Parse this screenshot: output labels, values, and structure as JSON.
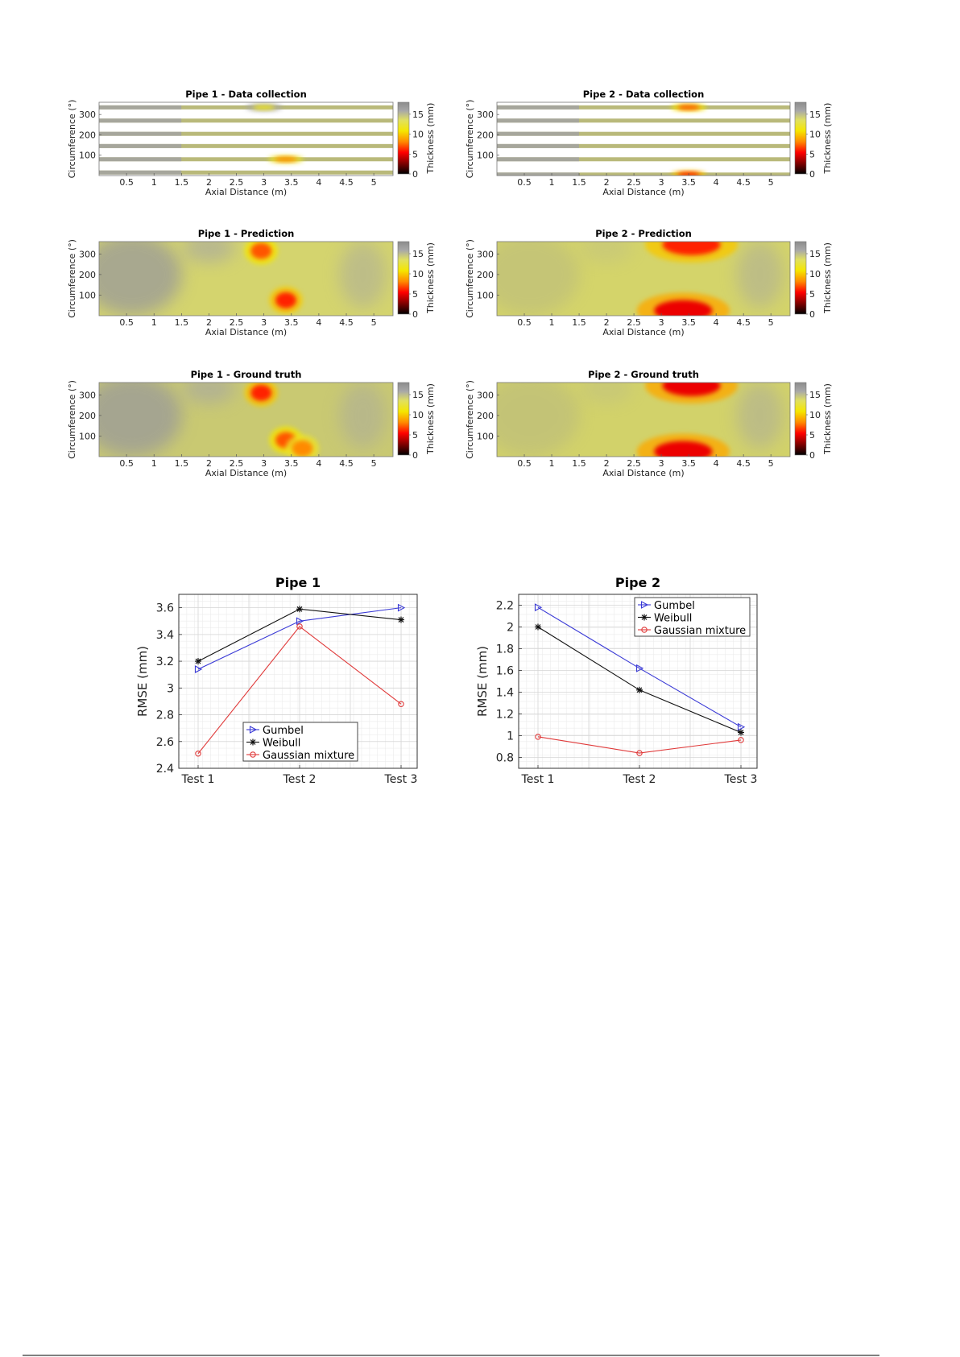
{
  "chart_data": [
    {
      "type": "heatmap",
      "title": "Pipe 1 - Data collection",
      "xlabel": "Axial Distance (m)",
      "ylabel": "Circumference (°)",
      "colorbar_label": "Thickness (mm)",
      "xticks": [
        "0.5",
        "1",
        "1.5",
        "2",
        "2.5",
        "3",
        "3.5",
        "4",
        "4.5",
        "5"
      ],
      "yticks": [
        "100",
        "200",
        "300"
      ],
      "cbticks": [
        "0",
        "5",
        "10",
        "15"
      ],
      "xlim": [
        0,
        5.35
      ],
      "ylim": [
        0,
        360
      ],
      "clim": [
        0,
        18
      ],
      "sampled_bands_deg": [
        15,
        80,
        145,
        205,
        270,
        335
      ],
      "thin_spots": [
        {
          "x": 3.0,
          "y": 335,
          "thickness_mm": 12
        },
        {
          "x": 3.4,
          "y": 80,
          "thickness_mm": 8
        }
      ]
    },
    {
      "type": "heatmap",
      "title": "Pipe 2 - Data collection",
      "xlabel": "Axial Distance (m)",
      "ylabel": "Circumference (°)",
      "colorbar_label": "Thickness (mm)",
      "xticks": [
        "0.5",
        "1",
        "1.5",
        "2",
        "2.5",
        "3",
        "3.5",
        "4",
        "4.5",
        "5"
      ],
      "yticks": [
        "100",
        "200",
        "300"
      ],
      "cbticks": [
        "0",
        "5",
        "10",
        "15"
      ],
      "xlim": [
        0,
        5.35
      ],
      "ylim": [
        0,
        360
      ],
      "clim": [
        0,
        18
      ],
      "sampled_bands_deg": [
        5,
        80,
        145,
        205,
        270,
        335
      ],
      "thin_spots": [
        {
          "x": 3.5,
          "y": 335,
          "thickness_mm": 7
        },
        {
          "x": 3.5,
          "y": 5,
          "thickness_mm": 6
        }
      ]
    },
    {
      "type": "heatmap",
      "title": "Pipe 1 - Prediction",
      "xlabel": "Axial Distance (m)",
      "ylabel": "Circumference (°)",
      "colorbar_label": "Thickness (mm)",
      "xticks": [
        "0.5",
        "1",
        "1.5",
        "2",
        "2.5",
        "3",
        "3.5",
        "4",
        "4.5",
        "5"
      ],
      "yticks": [
        "100",
        "200",
        "300"
      ],
      "cbticks": [
        "0",
        "5",
        "10",
        "15"
      ],
      "xlim": [
        0,
        5.35
      ],
      "ylim": [
        0,
        360
      ],
      "clim": [
        0,
        18
      ],
      "thin_spots": [
        {
          "x": 2.95,
          "y": 315,
          "thickness_mm": 7
        },
        {
          "x": 3.4,
          "y": 75,
          "thickness_mm": 6
        }
      ]
    },
    {
      "type": "heatmap",
      "title": "Pipe 2 - Prediction",
      "xlabel": "Axial Distance (m)",
      "ylabel": "Circumference (°)",
      "colorbar_label": "Thickness (mm)",
      "xticks": [
        "0.5",
        "1",
        "1.5",
        "2",
        "2.5",
        "3",
        "3.5",
        "4",
        "4.5",
        "5"
      ],
      "yticks": [
        "100",
        "200",
        "300"
      ],
      "cbticks": [
        "0",
        "5",
        "10",
        "15"
      ],
      "xlim": [
        0,
        5.35
      ],
      "ylim": [
        0,
        360
      ],
      "clim": [
        0,
        18
      ],
      "thin_spots": [
        {
          "x": 3.55,
          "y": 345,
          "thickness_mm": 6
        },
        {
          "x": 3.4,
          "y": 25,
          "thickness_mm": 5
        }
      ]
    },
    {
      "type": "heatmap",
      "title": "Pipe 1 - Ground truth",
      "xlabel": "Axial Distance (m)",
      "ylabel": "Circumference (°)",
      "colorbar_label": "Thickness (mm)",
      "xticks": [
        "0.5",
        "1",
        "1.5",
        "2",
        "2.5",
        "3",
        "3.5",
        "4",
        "4.5",
        "5"
      ],
      "yticks": [
        "100",
        "200",
        "300"
      ],
      "cbticks": [
        "0",
        "5",
        "10",
        "15"
      ],
      "xlim": [
        0,
        5.35
      ],
      "ylim": [
        0,
        360
      ],
      "clim": [
        0,
        18
      ],
      "thin_spots": [
        {
          "x": 2.95,
          "y": 310,
          "thickness_mm": 6
        },
        {
          "x": 3.4,
          "y": 80,
          "thickness_mm": 7
        },
        {
          "x": 3.7,
          "y": 40,
          "thickness_mm": 8
        }
      ]
    },
    {
      "type": "heatmap",
      "title": "Pipe 2 - Ground truth",
      "xlabel": "Axial Distance (m)",
      "ylabel": "Circumference (°)",
      "colorbar_label": "Thickness (mm)",
      "xticks": [
        "0.5",
        "1",
        "1.5",
        "2",
        "2.5",
        "3",
        "3.5",
        "4",
        "4.5",
        "5"
      ],
      "yticks": [
        "100",
        "200",
        "300"
      ],
      "cbticks": [
        "0",
        "5",
        "10",
        "15"
      ],
      "xlim": [
        0,
        5.35
      ],
      "ylim": [
        0,
        360
      ],
      "clim": [
        0,
        18
      ],
      "thin_spots": [
        {
          "x": 3.55,
          "y": 345,
          "thickness_mm": 5
        },
        {
          "x": 3.4,
          "y": 25,
          "thickness_mm": 5
        }
      ]
    },
    {
      "type": "line",
      "title": "Pipe 1",
      "xlabel": "",
      "ylabel": "RMSE (mm)",
      "categories": [
        "Test 1",
        "Test 2",
        "Test 3"
      ],
      "ylim": [
        2.4,
        3.7
      ],
      "yticks": [
        "2.4",
        "2.6",
        "2.8",
        "3",
        "3.2",
        "3.4",
        "3.6"
      ],
      "legend_position": "bottom-center",
      "grid": true,
      "series": [
        {
          "name": "Gumbel",
          "color": "#3a3ad6",
          "marker": "triangle-right",
          "values": [
            3.14,
            3.5,
            3.6
          ]
        },
        {
          "name": "Weibull",
          "color": "#111111",
          "marker": "star",
          "values": [
            3.2,
            3.59,
            3.51
          ]
        },
        {
          "name": "Gaussian mixture",
          "color": "#e03a3a",
          "marker": "circle",
          "values": [
            2.51,
            3.46,
            2.88
          ]
        }
      ]
    },
    {
      "type": "line",
      "title": "Pipe 2",
      "xlabel": "",
      "ylabel": "RMSE (mm)",
      "categories": [
        "Test 1",
        "Test 2",
        "Test 3"
      ],
      "ylim": [
        0.7,
        2.3
      ],
      "yticks": [
        "0.8",
        "1",
        "1.2",
        "1.4",
        "1.6",
        "1.8",
        "2",
        "2.2"
      ],
      "legend_position": "top-right",
      "grid": true,
      "series": [
        {
          "name": "Gumbel",
          "color": "#3a3ad6",
          "marker": "triangle-right",
          "values": [
            2.18,
            1.62,
            1.08
          ]
        },
        {
          "name": "Weibull",
          "color": "#111111",
          "marker": "star",
          "values": [
            2.0,
            1.42,
            1.03
          ]
        },
        {
          "name": "Gaussian mixture",
          "color": "#e03a3a",
          "marker": "circle",
          "values": [
            0.99,
            0.84,
            0.96
          ]
        }
      ]
    }
  ]
}
